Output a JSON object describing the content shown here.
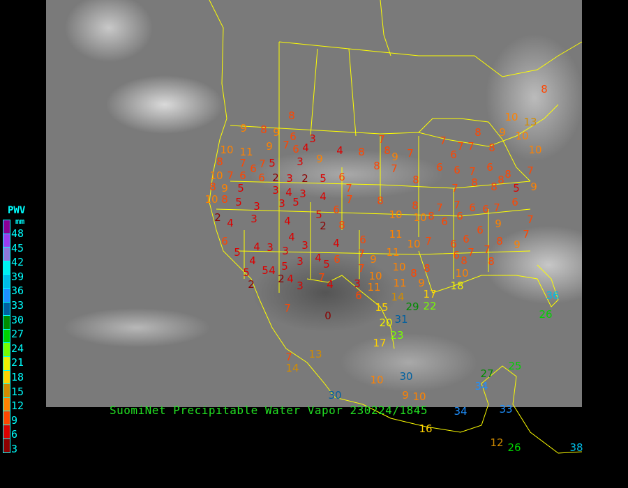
{
  "title": "SuomiNet Precipitable Water Vapor 230224/1845",
  "legend": {
    "title": "PWV",
    "unit": "mm",
    "labels": [
      "48",
      "45",
      "42",
      "39",
      "36",
      "33",
      "30",
      "27",
      "24",
      "21",
      "18",
      "15",
      "12",
      "9",
      "6",
      "3"
    ],
    "colors": [
      "#8c0096",
      "#9a3cf0",
      "#8c78dc",
      "#00f0f0",
      "#00bce6",
      "#1e90ff",
      "#0060a0",
      "#008c00",
      "#00d200",
      "#78ff00",
      "#f0f000",
      "#ffd200",
      "#d28c00",
      "#ff8200",
      "#ff4600",
      "#dc0000",
      "#8c0000"
    ]
  },
  "border_color": "#ffff00",
  "stations": [
    8,
    10,
    13,
    8,
    9,
    8,
    9,
    6,
    3,
    7,
    4,
    4,
    8,
    7,
    8,
    9,
    7,
    7,
    6,
    7,
    7,
    8,
    9,
    10,
    10,
    8,
    10,
    11,
    9,
    5,
    6,
    3,
    9,
    8,
    7,
    6,
    7,
    6,
    2,
    3,
    2,
    5,
    6,
    8,
    7,
    8,
    6,
    6,
    7,
    6,
    8,
    7,
    10,
    7,
    6,
    8,
    9,
    5,
    3,
    4,
    3,
    4,
    7,
    7,
    8,
    8,
    8,
    5,
    9,
    10,
    8,
    5,
    3,
    3,
    5,
    7,
    8,
    8,
    7,
    7,
    6,
    6,
    7,
    6,
    2,
    4,
    3,
    4,
    5,
    6,
    2,
    8,
    10,
    10,
    8,
    6,
    6,
    6,
    9,
    7,
    6,
    4,
    6,
    11,
    10,
    7,
    6,
    6,
    8,
    9,
    5,
    4,
    3,
    3,
    3,
    4,
    11,
    7,
    6,
    7,
    7,
    7,
    4,
    5,
    5,
    3,
    4,
    5,
    6,
    7,
    9,
    10,
    8,
    8,
    8,
    8,
    5,
    4,
    2,
    2,
    4,
    3,
    7,
    4,
    3,
    11,
    10,
    11,
    9,
    10,
    6,
    14,
    17,
    29,
    22,
    15,
    18,
    7,
    0,
    20,
    31,
    23,
    17,
    7,
    14,
    13,
    10,
    30,
    30,
    34,
    27,
    25,
    34,
    33,
    16,
    12,
    26,
    38,
    36,
    26,
    9,
    10
  ]
}
